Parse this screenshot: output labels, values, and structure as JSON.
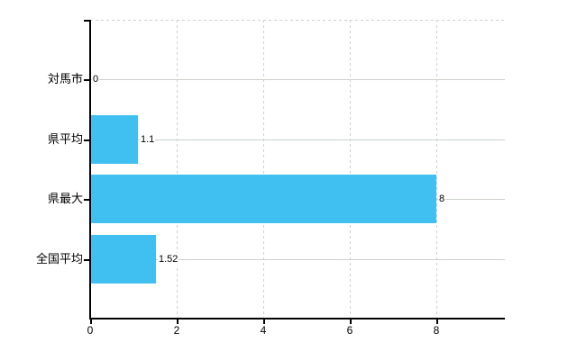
{
  "chart_data": {
    "type": "bar",
    "orientation": "horizontal",
    "title": "",
    "xlabel": "",
    "ylabel": "",
    "categories": [
      "対馬市",
      "県平均",
      "県最大",
      "全国平均"
    ],
    "values": [
      0,
      1.1,
      8,
      1.52
    ],
    "value_labels": [
      "0",
      "1.1",
      "8",
      "1.52"
    ],
    "xticks": [
      0,
      2,
      4,
      6,
      8
    ],
    "xtick_labels": [
      "0",
      "2",
      "4",
      "6",
      "8"
    ],
    "xlim": [
      0,
      9.58
    ],
    "grid": true,
    "legend": false,
    "colors": {
      "bar": "#3fc0f0",
      "grid_horizontal": "#cbd3ca",
      "grid_vertical": "#d6cdd6",
      "axis": "#000000",
      "text": "#000000",
      "background": "#ffffff"
    }
  }
}
